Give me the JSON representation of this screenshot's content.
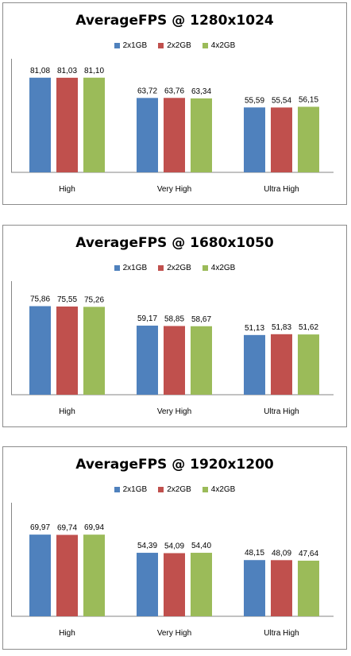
{
  "colors": {
    "2x1GB": "#4f81bd",
    "2x2GB": "#c0504d",
    "4x2GB": "#9bbb59"
  },
  "chart_data": [
    {
      "type": "bar",
      "title": "AverageFPS @ 1280x1024",
      "categories": [
        "High",
        "Very High",
        "Ultra High"
      ],
      "series": [
        {
          "name": "2x1GB",
          "values": [
            81.08,
            63.72,
            55.59
          ],
          "labels": [
            "81,08",
            "63,72",
            "55,59"
          ]
        },
        {
          "name": "2x2GB",
          "values": [
            81.03,
            63.76,
            55.54
          ],
          "labels": [
            "81,03",
            "63,76",
            "55,54"
          ]
        },
        {
          "name": "4x2GB",
          "values": [
            81.1,
            63.34,
            56.15
          ],
          "labels": [
            "81,10",
            "63,34",
            "56,15"
          ]
        }
      ],
      "legend": "top-center",
      "grid": false
    },
    {
      "type": "bar",
      "title": "AverageFPS @ 1680x1050",
      "categories": [
        "High",
        "Very High",
        "Ultra High"
      ],
      "series": [
        {
          "name": "2x1GB",
          "values": [
            75.86,
            59.17,
            51.13
          ],
          "labels": [
            "75,86",
            "59,17",
            "51,13"
          ]
        },
        {
          "name": "2x2GB",
          "values": [
            75.55,
            58.85,
            51.83
          ],
          "labels": [
            "75,55",
            "58,85",
            "51,83"
          ]
        },
        {
          "name": "4x2GB",
          "values": [
            75.26,
            58.67,
            51.62
          ],
          "labels": [
            "75,26",
            "58,67",
            "51,62"
          ]
        }
      ],
      "legend": "top-center",
      "grid": false
    },
    {
      "type": "bar",
      "title": "AverageFPS @ 1920x1200",
      "categories": [
        "High",
        "Very High",
        "Ultra High"
      ],
      "series": [
        {
          "name": "2x1GB",
          "values": [
            69.97,
            54.39,
            48.15
          ],
          "labels": [
            "69,97",
            "54,39",
            "48,15"
          ]
        },
        {
          "name": "2x2GB",
          "values": [
            69.74,
            54.09,
            48.09
          ],
          "labels": [
            "69,74",
            "54,09",
            "48,09"
          ]
        },
        {
          "name": "4x2GB",
          "values": [
            69.94,
            54.4,
            47.64
          ],
          "labels": [
            "69,94",
            "54,40",
            "47,64"
          ]
        }
      ],
      "legend": "top-center",
      "grid": false
    }
  ]
}
